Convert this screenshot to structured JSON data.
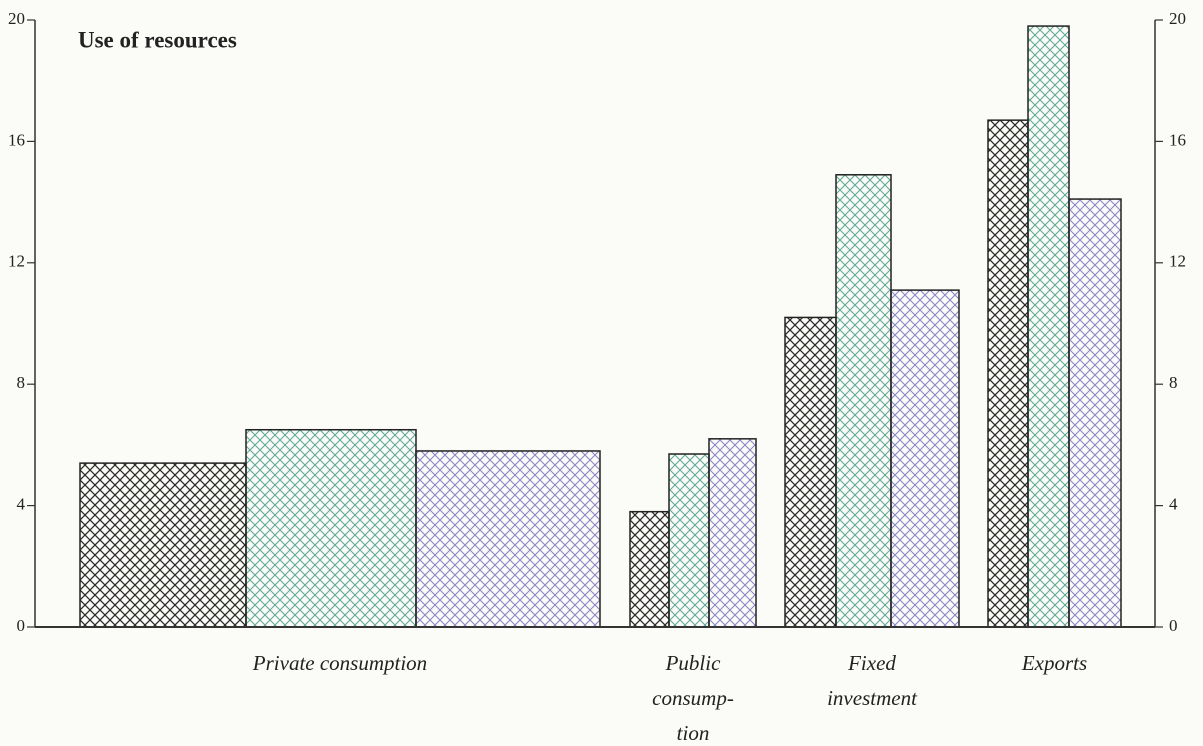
{
  "chart_data": {
    "type": "bar",
    "title": "Use of resources",
    "categories": [
      "Private consumption",
      "Public\nconsump-\ntion",
      "Fixed\ninvestment",
      "Exports"
    ],
    "series": [
      {
        "color": "#2b2b2b",
        "values": [
          5.4,
          3.8,
          10.2,
          16.7
        ]
      },
      {
        "color": "#5fa898",
        "values": [
          6.5,
          5.7,
          14.9,
          19.8
        ]
      },
      {
        "color": "#8a86c8",
        "values": [
          5.8,
          6.2,
          11.1,
          14.1
        ]
      }
    ],
    "ylim": [
      0,
      20
    ],
    "yticks": [
      0,
      4,
      8,
      12,
      16,
      20
    ],
    "grid": false
  }
}
